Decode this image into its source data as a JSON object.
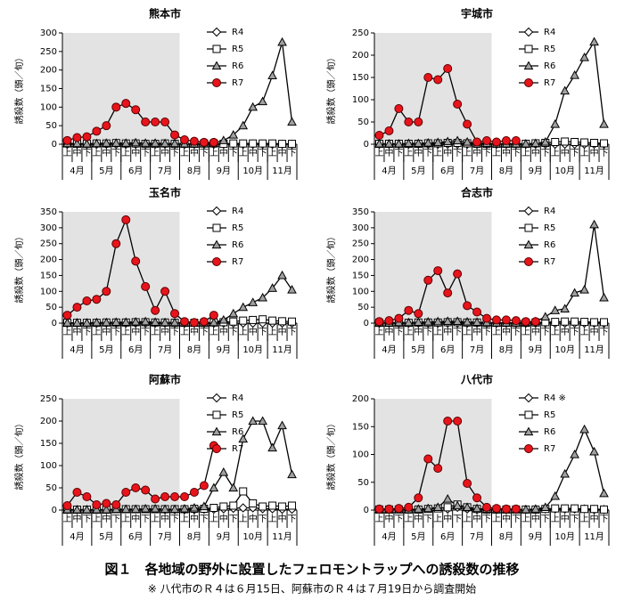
{
  "chart_data": [
    {
      "type": "line",
      "title": "熊本市",
      "ylabel": "誘殺数（頭／旬）",
      "ylim": [
        0,
        300
      ],
      "yticks": [
        0,
        50,
        100,
        150,
        200,
        250,
        300
      ],
      "shaded_categories": [
        0,
        11
      ],
      "shade_color": "#e3e3e3",
      "categories": [
        "上",
        "中",
        "下",
        "上",
        "中",
        "下",
        "上",
        "中",
        "下",
        "上",
        "中",
        "下",
        "上",
        "中",
        "下",
        "上",
        "中",
        "下",
        "上",
        "中",
        "下",
        "上",
        "中",
        "下"
      ],
      "months": [
        "4月",
        "5月",
        "6月",
        "7月",
        "8月",
        "9月",
        "10月",
        "11月"
      ],
      "series": [
        {
          "name": "R4",
          "marker": "diamond",
          "color": "#ffffff",
          "values": [
            0,
            0,
            0,
            0,
            0,
            0,
            0,
            0,
            0,
            0,
            0,
            0,
            0,
            0,
            0,
            0,
            0,
            0,
            0,
            0,
            0,
            0,
            0,
            0
          ]
        },
        {
          "name": "R5",
          "marker": "square",
          "color": "#ffffff",
          "values": [
            2,
            1,
            1,
            2,
            2,
            3,
            2,
            2,
            1,
            1,
            2,
            1,
            1,
            1,
            2,
            2,
            1,
            2,
            2,
            2,
            2,
            2,
            1,
            1
          ]
        },
        {
          "name": "R6",
          "marker": "triangle",
          "color": "#a0a0a0",
          "values": [
            2,
            2,
            1,
            2,
            3,
            3,
            3,
            4,
            3,
            3,
            2,
            2,
            1,
            1,
            1,
            3,
            10,
            25,
            50,
            100,
            115,
            185,
            275,
            60
          ]
        },
        {
          "name": "R7",
          "marker": "circle",
          "color": "#e8141c",
          "values": [
            10,
            18,
            20,
            35,
            50,
            100,
            110,
            93,
            60,
            60,
            60,
            25,
            12,
            8,
            5,
            5,
            null,
            null,
            null,
            null,
            null,
            null,
            null,
            null
          ]
        }
      ]
    },
    {
      "type": "line",
      "title": "宇城市",
      "ylabel": "誘殺数（頭／旬）",
      "ylim": [
        0,
        250
      ],
      "yticks": [
        0,
        50,
        100,
        150,
        200,
        250
      ],
      "shaded_categories": [
        0,
        11
      ],
      "shade_color": "#e3e3e3",
      "categories": [
        "上",
        "中",
        "下",
        "上",
        "中",
        "下",
        "上",
        "中",
        "下",
        "上",
        "中",
        "下",
        "上",
        "中",
        "下",
        "上",
        "中",
        "下",
        "上",
        "中",
        "下",
        "上",
        "中",
        "下"
      ],
      "months": [
        "4月",
        "5月",
        "6月",
        "7月",
        "8月",
        "9月",
        "10月",
        "11月"
      ],
      "series": [
        {
          "name": "R4",
          "marker": "diamond",
          "color": "#ffffff",
          "values": [
            0,
            0,
            0,
            0,
            0,
            0,
            0,
            0,
            0,
            0,
            0,
            0,
            0,
            0,
            0,
            0,
            0,
            0,
            0,
            0,
            0,
            0,
            0,
            0
          ]
        },
        {
          "name": "R5",
          "marker": "square",
          "color": "#ffffff",
          "values": [
            1,
            1,
            1,
            1,
            1,
            2,
            2,
            3,
            3,
            2,
            1,
            1,
            1,
            1,
            1,
            1,
            2,
            3,
            5,
            6,
            5,
            4,
            3,
            2
          ]
        },
        {
          "name": "R6",
          "marker": "triangle",
          "color": "#a0a0a0",
          "values": [
            1,
            1,
            1,
            2,
            2,
            3,
            4,
            6,
            8,
            5,
            3,
            2,
            1,
            1,
            1,
            1,
            2,
            5,
            45,
            120,
            155,
            195,
            230,
            45
          ]
        },
        {
          "name": "R7",
          "marker": "circle",
          "color": "#e8141c",
          "values": [
            20,
            30,
            80,
            50,
            50,
            150,
            145,
            170,
            90,
            45,
            5,
            8,
            5,
            8,
            8,
            null,
            null,
            null,
            null,
            null,
            null,
            null,
            null,
            null
          ]
        }
      ]
    },
    {
      "type": "line",
      "title": "玉名市",
      "ylabel": "誘殺数（頭／旬）",
      "ylim": [
        0,
        350
      ],
      "yticks": [
        0,
        50,
        100,
        150,
        200,
        250,
        300,
        350
      ],
      "shaded_categories": [
        0,
        11
      ],
      "shade_color": "#e3e3e3",
      "categories": [
        "上",
        "中",
        "下",
        "上",
        "中",
        "下",
        "上",
        "中",
        "下",
        "上",
        "中",
        "下",
        "上",
        "中",
        "下",
        "上",
        "中",
        "下",
        "上",
        "中",
        "下",
        "上",
        "中",
        "下"
      ],
      "months": [
        "4月",
        "5月",
        "6月",
        "7月",
        "8月",
        "9月",
        "10月",
        "11月"
      ],
      "series": [
        {
          "name": "R4",
          "marker": "diamond",
          "color": "#ffffff",
          "values": [
            0,
            0,
            0,
            0,
            0,
            0,
            0,
            0,
            0,
            0,
            0,
            0,
            0,
            0,
            0,
            0,
            0,
            0,
            0,
            0,
            0,
            0,
            0,
            0
          ]
        },
        {
          "name": "R5",
          "marker": "square",
          "color": "#ffffff",
          "values": [
            1,
            1,
            1,
            1,
            2,
            2,
            2,
            3,
            3,
            2,
            2,
            1,
            1,
            1,
            1,
            2,
            3,
            5,
            8,
            10,
            12,
            8,
            6,
            5
          ]
        },
        {
          "name": "R6",
          "marker": "triangle",
          "color": "#a0a0a0",
          "values": [
            1,
            1,
            1,
            2,
            2,
            3,
            3,
            4,
            5,
            3,
            2,
            2,
            1,
            1,
            1,
            2,
            10,
            30,
            50,
            65,
            80,
            110,
            150,
            105
          ]
        },
        {
          "name": "R7",
          "marker": "circle",
          "color": "#e8141c",
          "values": [
            25,
            50,
            70,
            75,
            100,
            250,
            325,
            195,
            115,
            40,
            100,
            30,
            5,
            2,
            5,
            25,
            null,
            null,
            null,
            null,
            null,
            null,
            null,
            null
          ]
        }
      ]
    },
    {
      "type": "line",
      "title": "合志市",
      "ylabel": "誘殺数（頭／旬）",
      "ylim": [
        0,
        350
      ],
      "yticks": [
        0,
        50,
        100,
        150,
        200,
        250,
        300,
        350
      ],
      "shaded_categories": [
        0,
        11
      ],
      "shade_color": "#e3e3e3",
      "categories": [
        "上",
        "中",
        "下",
        "上",
        "中",
        "下",
        "上",
        "中",
        "下",
        "上",
        "中",
        "下",
        "上",
        "中",
        "下",
        "上",
        "中",
        "下",
        "上",
        "中",
        "下",
        "上",
        "中",
        "下"
      ],
      "months": [
        "4月",
        "5月",
        "6月",
        "7月",
        "8月",
        "9月",
        "10月",
        "11月"
      ],
      "series": [
        {
          "name": "R4",
          "marker": "diamond",
          "color": "#ffffff",
          "values": [
            0,
            0,
            0,
            0,
            0,
            0,
            0,
            0,
            0,
            0,
            0,
            0,
            0,
            0,
            0,
            0,
            0,
            0,
            0,
            0,
            0,
            0,
            0,
            0
          ]
        },
        {
          "name": "R5",
          "marker": "square",
          "color": "#ffffff",
          "values": [
            1,
            1,
            1,
            1,
            2,
            2,
            2,
            3,
            3,
            2,
            2,
            1,
            1,
            1,
            1,
            1,
            2,
            3,
            4,
            5,
            5,
            4,
            3,
            3
          ]
        },
        {
          "name": "R6",
          "marker": "triangle",
          "color": "#a0a0a0",
          "values": [
            1,
            1,
            2,
            2,
            3,
            4,
            5,
            6,
            6,
            4,
            3,
            2,
            1,
            1,
            1,
            2,
            5,
            20,
            40,
            45,
            95,
            105,
            310,
            80
          ]
        },
        {
          "name": "R7",
          "marker": "circle",
          "color": "#e8141c",
          "values": [
            5,
            8,
            15,
            40,
            30,
            135,
            165,
            95,
            155,
            55,
            35,
            15,
            10,
            10,
            8,
            5,
            5,
            null,
            null,
            null,
            null,
            null,
            null,
            null
          ]
        }
      ]
    },
    {
      "type": "line",
      "title": "阿蘇市",
      "ylabel": "誘殺数（頭／旬）",
      "ylim": [
        0,
        250
      ],
      "yticks": [
        0,
        50,
        100,
        150,
        200,
        250
      ],
      "shaded_categories": [
        0,
        11
      ],
      "shade_color": "#e3e3e3",
      "categories": [
        "上",
        "中",
        "下",
        "上",
        "中",
        "下",
        "上",
        "中",
        "下",
        "上",
        "中",
        "下",
        "上",
        "中",
        "下",
        "上",
        "中",
        "下",
        "上",
        "中",
        "下",
        "上",
        "中",
        "下"
      ],
      "months": [
        "4月",
        "5月",
        "6月",
        "7月",
        "8月",
        "9月",
        "10月",
        "11月"
      ],
      "series": [
        {
          "name": "R4",
          "marker": "diamond",
          "color": "#ffffff",
          "values": [
            null,
            null,
            null,
            null,
            null,
            null,
            null,
            null,
            null,
            null,
            1,
            1,
            1,
            1,
            2,
            2,
            3,
            4,
            5,
            5,
            3,
            3,
            2,
            2
          ]
        },
        {
          "name": "R5",
          "marker": "square",
          "color": "#ffffff",
          "values": [
            1,
            1,
            1,
            1,
            1,
            2,
            2,
            2,
            2,
            2,
            2,
            2,
            2,
            3,
            3,
            5,
            8,
            10,
            42,
            15,
            8,
            10,
            8,
            10
          ]
        },
        {
          "name": "R6",
          "marker": "triangle",
          "color": "#a0a0a0",
          "values": [
            1,
            1,
            1,
            1,
            1,
            2,
            2,
            2,
            3,
            3,
            2,
            2,
            3,
            5,
            8,
            50,
            85,
            50,
            160,
            200,
            200,
            140,
            190,
            80
          ]
        },
        {
          "name": "R7",
          "marker": "circle",
          "color": "#e8141c",
          "values": [
            10,
            40,
            30,
            12,
            15,
            12,
            40,
            50,
            45,
            25,
            30,
            30,
            30,
            40,
            55,
            145,
            null,
            null,
            null,
            null,
            null,
            null,
            null,
            null
          ]
        }
      ]
    },
    {
      "type": "line",
      "title": "八代市",
      "ylabel": "誘殺数（頭／旬）",
      "ylim": [
        0,
        200
      ],
      "yticks": [
        0,
        50,
        100,
        150,
        200
      ],
      "shaded_categories": [
        0,
        11
      ],
      "shade_color": "#e3e3e3",
      "categories": [
        "上",
        "中",
        "下",
        "上",
        "中",
        "下",
        "上",
        "中",
        "下",
        "上",
        "中",
        "下",
        "上",
        "中",
        "下",
        "上",
        "中",
        "下",
        "上",
        "中",
        "下",
        "上",
        "中",
        "下"
      ],
      "months": [
        "4月",
        "5月",
        "6月",
        "7月",
        "8月",
        "9月",
        "10月",
        "11月"
      ],
      "series": [
        {
          "name": "R4 ※",
          "marker": "diamond",
          "color": "#ffffff",
          "values": [
            null,
            null,
            null,
            null,
            null,
            null,
            null,
            2,
            5,
            2,
            1,
            1,
            1,
            1,
            1,
            1,
            1,
            2,
            2,
            2,
            2,
            2,
            1,
            1
          ]
        },
        {
          "name": "R5",
          "marker": "square",
          "color": "#ffffff",
          "values": [
            1,
            1,
            1,
            1,
            1,
            2,
            3,
            5,
            10,
            5,
            2,
            1,
            1,
            1,
            1,
            1,
            1,
            2,
            3,
            3,
            3,
            2,
            2,
            1
          ]
        },
        {
          "name": "R6",
          "marker": "triangle",
          "color": "#a0a0a0",
          "values": [
            1,
            1,
            1,
            1,
            2,
            3,
            5,
            20,
            8,
            5,
            3,
            2,
            1,
            1,
            1,
            1,
            2,
            5,
            25,
            65,
            100,
            145,
            105,
            30
          ]
        },
        {
          "name": "R7",
          "marker": "circle",
          "color": "#e8141c",
          "values": [
            2,
            2,
            3,
            5,
            22,
            92,
            75,
            160,
            160,
            48,
            22,
            5,
            3,
            2,
            2,
            null,
            null,
            null,
            null,
            null,
            null,
            null,
            null,
            null
          ]
        }
      ]
    }
  ],
  "caption": {
    "title": "図１　各地域の野外に設置したフェロモントラップへの誘殺数の推移",
    "note": "※ 八代市のＲ４は６月15日、阿蘇市のＲ４は７月19日から調査開始"
  }
}
